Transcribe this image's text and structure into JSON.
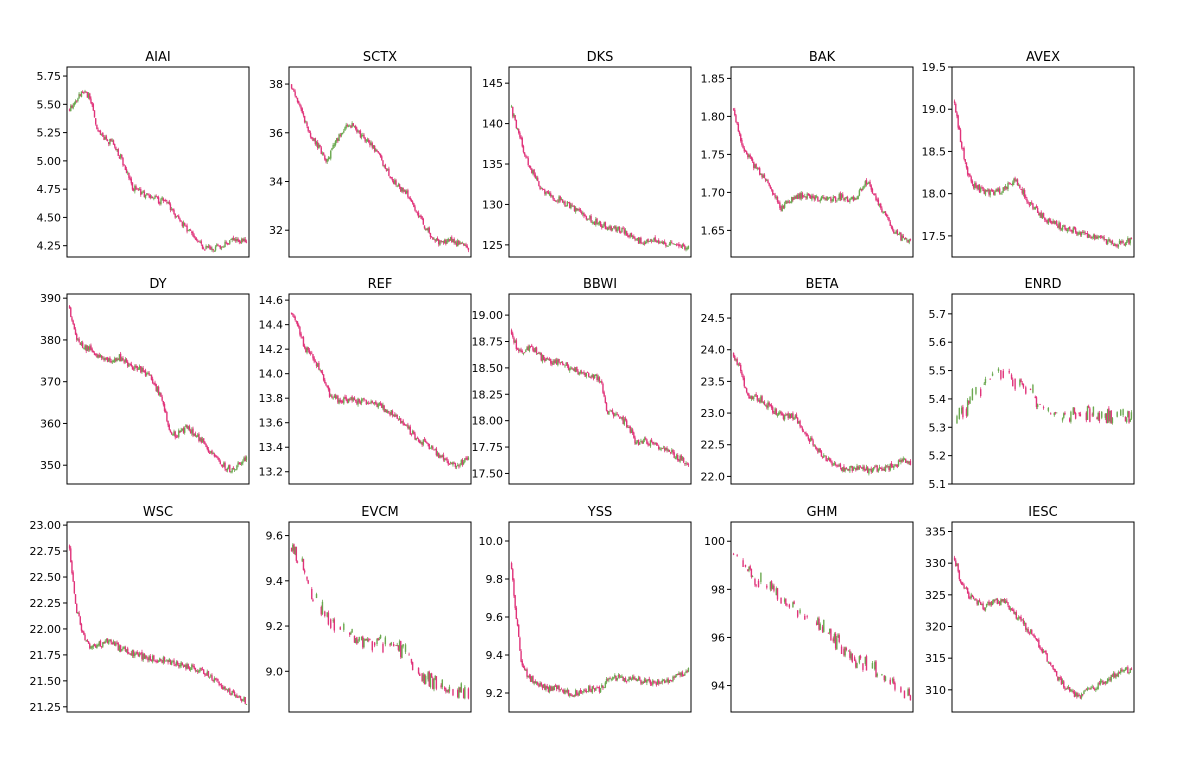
{
  "colors": {
    "up": "#6aa84f",
    "down": "#e0337a",
    "axis": "#000000",
    "background": "#ffffff"
  },
  "chart_data": [
    {
      "type": "candlestick",
      "title": "AIAI",
      "ylim": [
        4.15,
        5.83
      ],
      "yticks": [
        "4.25",
        "4.50",
        "4.75",
        "5.00",
        "5.25",
        "5.50",
        "5.75"
      ],
      "path": [
        [
          0,
          5.45
        ],
        [
          0.04,
          5.55
        ],
        [
          0.08,
          5.62
        ],
        [
          0.12,
          5.55
        ],
        [
          0.16,
          5.25
        ],
        [
          0.2,
          5.2
        ],
        [
          0.25,
          5.15
        ],
        [
          0.3,
          5.0
        ],
        [
          0.35,
          4.78
        ],
        [
          0.4,
          4.72
        ],
        [
          0.45,
          4.68
        ],
        [
          0.5,
          4.65
        ],
        [
          0.55,
          4.65
        ],
        [
          0.6,
          4.5
        ],
        [
          0.65,
          4.42
        ],
        [
          0.7,
          4.33
        ],
        [
          0.75,
          4.25
        ],
        [
          0.8,
          4.22
        ],
        [
          0.85,
          4.25
        ],
        [
          0.9,
          4.28
        ],
        [
          0.95,
          4.3
        ],
        [
          1,
          4.3
        ]
      ]
    },
    {
      "type": "candlestick",
      "title": "SCTX",
      "ylim": [
        30.9,
        38.7
      ],
      "yticks": [
        "32",
        "34",
        "36",
        "38"
      ],
      "path": [
        [
          0,
          38.0
        ],
        [
          0.05,
          37.0
        ],
        [
          0.1,
          36.0
        ],
        [
          0.15,
          35.5
        ],
        [
          0.2,
          34.8
        ],
        [
          0.25,
          35.6
        ],
        [
          0.3,
          36.2
        ],
        [
          0.35,
          36.3
        ],
        [
          0.4,
          35.8
        ],
        [
          0.45,
          35.5
        ],
        [
          0.5,
          35.0
        ],
        [
          0.55,
          34.3
        ],
        [
          0.6,
          33.8
        ],
        [
          0.65,
          33.5
        ],
        [
          0.7,
          32.8
        ],
        [
          0.75,
          32.2
        ],
        [
          0.8,
          31.6
        ],
        [
          0.85,
          31.5
        ],
        [
          0.9,
          31.6
        ],
        [
          0.95,
          31.4
        ],
        [
          1,
          31.3
        ]
      ]
    },
    {
      "type": "candlestick",
      "title": "DKS",
      "ylim": [
        123.5,
        147
      ],
      "yticks": [
        "125",
        "130",
        "135",
        "140",
        "145"
      ],
      "path": [
        [
          0,
          142
        ],
        [
          0.04,
          139
        ],
        [
          0.08,
          136
        ],
        [
          0.12,
          134
        ],
        [
          0.17,
          132
        ],
        [
          0.22,
          131
        ],
        [
          0.28,
          130.5
        ],
        [
          0.35,
          129.5
        ],
        [
          0.42,
          128.5
        ],
        [
          0.5,
          127.5
        ],
        [
          0.58,
          127
        ],
        [
          0.65,
          126.5
        ],
        [
          0.72,
          125.5
        ],
        [
          0.8,
          125.5
        ],
        [
          0.88,
          125.2
        ],
        [
          0.95,
          125
        ],
        [
          1,
          124.5
        ]
      ]
    },
    {
      "type": "candlestick",
      "title": "BAK",
      "ylim": [
        1.615,
        1.865
      ],
      "yticks": [
        "1.65",
        "1.70",
        "1.75",
        "1.80",
        "1.85"
      ],
      "path": [
        [
          0,
          1.81
        ],
        [
          0.04,
          1.77
        ],
        [
          0.08,
          1.75
        ],
        [
          0.12,
          1.735
        ],
        [
          0.17,
          1.72
        ],
        [
          0.22,
          1.7
        ],
        [
          0.27,
          1.68
        ],
        [
          0.32,
          1.69
        ],
        [
          0.38,
          1.695
        ],
        [
          0.45,
          1.695
        ],
        [
          0.5,
          1.69
        ],
        [
          0.55,
          1.69
        ],
        [
          0.6,
          1.695
        ],
        [
          0.65,
          1.69
        ],
        [
          0.7,
          1.695
        ],
        [
          0.75,
          1.715
        ],
        [
          0.8,
          1.695
        ],
        [
          0.85,
          1.67
        ],
        [
          0.9,
          1.65
        ],
        [
          0.95,
          1.64
        ],
        [
          1,
          1.635
        ]
      ]
    },
    {
      "type": "candlestick",
      "title": "AVEX",
      "ylim": [
        17.25,
        19.5
      ],
      "yticks": [
        "17.5",
        "18.0",
        "18.5",
        "19.0",
        "19.5"
      ],
      "path": [
        [
          0,
          19.1
        ],
        [
          0.04,
          18.6
        ],
        [
          0.08,
          18.2
        ],
        [
          0.12,
          18.08
        ],
        [
          0.17,
          18.03
        ],
        [
          0.22,
          18.02
        ],
        [
          0.28,
          18.05
        ],
        [
          0.34,
          18.15
        ],
        [
          0.38,
          18.05
        ],
        [
          0.42,
          17.9
        ],
        [
          0.48,
          17.75
        ],
        [
          0.55,
          17.65
        ],
        [
          0.62,
          17.6
        ],
        [
          0.7,
          17.55
        ],
        [
          0.78,
          17.5
        ],
        [
          0.85,
          17.45
        ],
        [
          0.9,
          17.4
        ],
        [
          0.95,
          17.42
        ],
        [
          1,
          17.45
        ]
      ]
    },
    {
      "type": "candlestick",
      "title": "DY",
      "ylim": [
        345.5,
        391
      ],
      "yticks": [
        "350",
        "360",
        "370",
        "380",
        "390"
      ],
      "path": [
        [
          0,
          388
        ],
        [
          0.04,
          381
        ],
        [
          0.08,
          378
        ],
        [
          0.12,
          378
        ],
        [
          0.17,
          376
        ],
        [
          0.22,
          375
        ],
        [
          0.28,
          376
        ],
        [
          0.34,
          374
        ],
        [
          0.4,
          373
        ],
        [
          0.46,
          371
        ],
        [
          0.52,
          366
        ],
        [
          0.56,
          359
        ],
        [
          0.6,
          357
        ],
        [
          0.66,
          359
        ],
        [
          0.72,
          357
        ],
        [
          0.78,
          354
        ],
        [
          0.84,
          351
        ],
        [
          0.9,
          349
        ],
        [
          0.95,
          350
        ],
        [
          1,
          352
        ]
      ]
    },
    {
      "type": "candlestick",
      "title": "REF",
      "ylim": [
        13.1,
        14.65
      ],
      "yticks": [
        "13.2",
        "13.4",
        "13.6",
        "13.8",
        "14.0",
        "14.2",
        "14.4",
        "14.6"
      ],
      "path": [
        [
          0,
          14.5
        ],
        [
          0.04,
          14.38
        ],
        [
          0.08,
          14.2
        ],
        [
          0.12,
          14.15
        ],
        [
          0.17,
          14.0
        ],
        [
          0.22,
          13.82
        ],
        [
          0.28,
          13.78
        ],
        [
          0.34,
          13.78
        ],
        [
          0.4,
          13.78
        ],
        [
          0.46,
          13.75
        ],
        [
          0.52,
          13.72
        ],
        [
          0.58,
          13.66
        ],
        [
          0.64,
          13.58
        ],
        [
          0.7,
          13.48
        ],
        [
          0.76,
          13.42
        ],
        [
          0.82,
          13.35
        ],
        [
          0.88,
          13.27
        ],
        [
          0.94,
          13.25
        ],
        [
          1,
          13.32
        ]
      ]
    },
    {
      "type": "candlestick",
      "title": "BBWI",
      "ylim": [
        17.4,
        19.2
      ],
      "yticks": [
        "17.50",
        "17.75",
        "18.00",
        "18.25",
        "18.50",
        "18.75",
        "19.00"
      ],
      "path": [
        [
          0,
          18.85
        ],
        [
          0.04,
          18.65
        ],
        [
          0.08,
          18.65
        ],
        [
          0.12,
          18.7
        ],
        [
          0.17,
          18.6
        ],
        [
          0.22,
          18.55
        ],
        [
          0.28,
          18.55
        ],
        [
          0.34,
          18.5
        ],
        [
          0.4,
          18.45
        ],
        [
          0.46,
          18.43
        ],
        [
          0.5,
          18.4
        ],
        [
          0.54,
          18.1
        ],
        [
          0.6,
          18.05
        ],
        [
          0.66,
          17.95
        ],
        [
          0.7,
          17.8
        ],
        [
          0.76,
          17.8
        ],
        [
          0.82,
          17.75
        ],
        [
          0.88,
          17.72
        ],
        [
          0.94,
          17.65
        ],
        [
          1,
          17.58
        ]
      ]
    },
    {
      "type": "candlestick",
      "title": "BETA",
      "ylim": [
        21.88,
        24.88
      ],
      "yticks": [
        "22.0",
        "22.5",
        "23.0",
        "23.5",
        "24.0",
        "24.5"
      ],
      "path": [
        [
          0,
          23.95
        ],
        [
          0.04,
          23.7
        ],
        [
          0.08,
          23.3
        ],
        [
          0.12,
          23.25
        ],
        [
          0.17,
          23.2
        ],
        [
          0.22,
          23.05
        ],
        [
          0.28,
          22.95
        ],
        [
          0.34,
          22.95
        ],
        [
          0.38,
          22.8
        ],
        [
          0.44,
          22.55
        ],
        [
          0.5,
          22.35
        ],
        [
          0.56,
          22.2
        ],
        [
          0.62,
          22.12
        ],
        [
          0.68,
          22.12
        ],
        [
          0.74,
          22.1
        ],
        [
          0.8,
          22.12
        ],
        [
          0.86,
          22.12
        ],
        [
          0.92,
          22.2
        ],
        [
          0.96,
          22.25
        ],
        [
          1,
          22.2
        ]
      ]
    },
    {
      "type": "candlestick",
      "title": "ENRD",
      "ylim": [
        5.1,
        5.77
      ],
      "yticks": [
        "5.1",
        "5.2",
        "5.3",
        "5.4",
        "5.5",
        "5.6",
        "5.7"
      ],
      "path": [
        [
          0,
          5.3
        ],
        [
          0.04,
          5.35
        ],
        [
          0.08,
          5.38
        ],
        [
          0.12,
          5.42
        ],
        [
          0.18,
          5.46
        ],
        [
          0.24,
          5.5
        ],
        [
          0.3,
          5.5
        ],
        [
          0.36,
          5.45
        ],
        [
          0.42,
          5.44
        ],
        [
          0.48,
          5.38
        ],
        [
          0.54,
          5.35
        ],
        [
          0.6,
          5.32
        ],
        [
          0.66,
          5.34
        ],
        [
          0.72,
          5.36
        ],
        [
          0.78,
          5.34
        ],
        [
          0.84,
          5.33
        ],
        [
          0.9,
          5.34
        ],
        [
          0.95,
          5.34
        ],
        [
          1,
          5.33
        ]
      ]
    },
    {
      "type": "candlestick",
      "title": "WSC",
      "ylim": [
        21.2,
        23.03
      ],
      "yticks": [
        "21.25",
        "21.50",
        "21.75",
        "22.00",
        "22.25",
        "22.50",
        "22.75",
        "23.00"
      ],
      "path": [
        [
          0,
          22.8
        ],
        [
          0.04,
          22.2
        ],
        [
          0.08,
          21.95
        ],
        [
          0.12,
          21.82
        ],
        [
          0.17,
          21.85
        ],
        [
          0.22,
          21.88
        ],
        [
          0.28,
          21.82
        ],
        [
          0.34,
          21.78
        ],
        [
          0.4,
          21.74
        ],
        [
          0.46,
          21.72
        ],
        [
          0.52,
          21.7
        ],
        [
          0.58,
          21.68
        ],
        [
          0.64,
          21.65
        ],
        [
          0.7,
          21.62
        ],
        [
          0.76,
          21.58
        ],
        [
          0.82,
          21.5
        ],
        [
          0.88,
          21.42
        ],
        [
          0.94,
          21.35
        ],
        [
          1,
          21.3
        ]
      ]
    },
    {
      "type": "candlestick",
      "title": "EVCM",
      "ylim": [
        8.82,
        9.66
      ],
      "yticks": [
        "9.0",
        "9.2",
        "9.4",
        "9.6"
      ],
      "path": [
        [
          0,
          9.55
        ],
        [
          0.05,
          9.5
        ],
        [
          0.1,
          9.38
        ],
        [
          0.15,
          9.3
        ],
        [
          0.2,
          9.24
        ],
        [
          0.26,
          9.2
        ],
        [
          0.32,
          9.17
        ],
        [
          0.38,
          9.14
        ],
        [
          0.44,
          9.13
        ],
        [
          0.5,
          9.12
        ],
        [
          0.56,
          9.12
        ],
        [
          0.62,
          9.1
        ],
        [
          0.68,
          9.05
        ],
        [
          0.74,
          8.98
        ],
        [
          0.8,
          8.95
        ],
        [
          0.86,
          8.93
        ],
        [
          0.92,
          8.92
        ],
        [
          1,
          8.92
        ]
      ]
    },
    {
      "type": "candlestick",
      "title": "YSS",
      "ylim": [
        9.1,
        10.1
      ],
      "yticks": [
        "9.2",
        "9.4",
        "9.6",
        "9.8",
        "10.0"
      ],
      "path": [
        [
          0,
          9.88
        ],
        [
          0.03,
          9.6
        ],
        [
          0.06,
          9.35
        ],
        [
          0.1,
          9.28
        ],
        [
          0.15,
          9.25
        ],
        [
          0.2,
          9.22
        ],
        [
          0.26,
          9.23
        ],
        [
          0.32,
          9.2
        ],
        [
          0.38,
          9.2
        ],
        [
          0.44,
          9.22
        ],
        [
          0.5,
          9.22
        ],
        [
          0.56,
          9.28
        ],
        [
          0.62,
          9.28
        ],
        [
          0.68,
          9.27
        ],
        [
          0.74,
          9.26
        ],
        [
          0.8,
          9.25
        ],
        [
          0.86,
          9.26
        ],
        [
          0.92,
          9.28
        ],
        [
          0.96,
          9.3
        ],
        [
          1,
          9.32
        ]
      ]
    },
    {
      "type": "candlestick",
      "title": "GHM",
      "ylim": [
        92.9,
        100.8
      ],
      "yticks": [
        "94",
        "96",
        "98",
        "100"
      ],
      "path": [
        [
          0,
          99.5
        ],
        [
          0.05,
          99.2
        ],
        [
          0.1,
          98.5
        ],
        [
          0.16,
          98.3
        ],
        [
          0.22,
          97.9
        ],
        [
          0.28,
          97.5
        ],
        [
          0.34,
          97.2
        ],
        [
          0.4,
          96.9
        ],
        [
          0.46,
          96.6
        ],
        [
          0.52,
          96.3
        ],
        [
          0.58,
          95.8
        ],
        [
          0.64,
          95.4
        ],
        [
          0.7,
          95.0
        ],
        [
          0.76,
          94.8
        ],
        [
          0.82,
          94.5
        ],
        [
          0.88,
          94.2
        ],
        [
          0.94,
          93.9
        ],
        [
          1,
          93.4
        ]
      ]
    },
    {
      "type": "candlestick",
      "title": "IESC",
      "ylim": [
        306.5,
        336.5
      ],
      "yticks": [
        "310",
        "315",
        "320",
        "325",
        "330",
        "335"
      ],
      "path": [
        [
          0,
          331
        ],
        [
          0.04,
          327
        ],
        [
          0.08,
          325
        ],
        [
          0.12,
          324
        ],
        [
          0.17,
          323
        ],
        [
          0.22,
          324
        ],
        [
          0.28,
          324
        ],
        [
          0.34,
          322
        ],
        [
          0.4,
          320
        ],
        [
          0.46,
          318
        ],
        [
          0.52,
          315
        ],
        [
          0.58,
          312
        ],
        [
          0.64,
          310
        ],
        [
          0.7,
          309
        ],
        [
          0.76,
          310
        ],
        [
          0.82,
          311
        ],
        [
          0.88,
          312
        ],
        [
          0.94,
          313
        ],
        [
          1,
          313
        ]
      ]
    }
  ]
}
